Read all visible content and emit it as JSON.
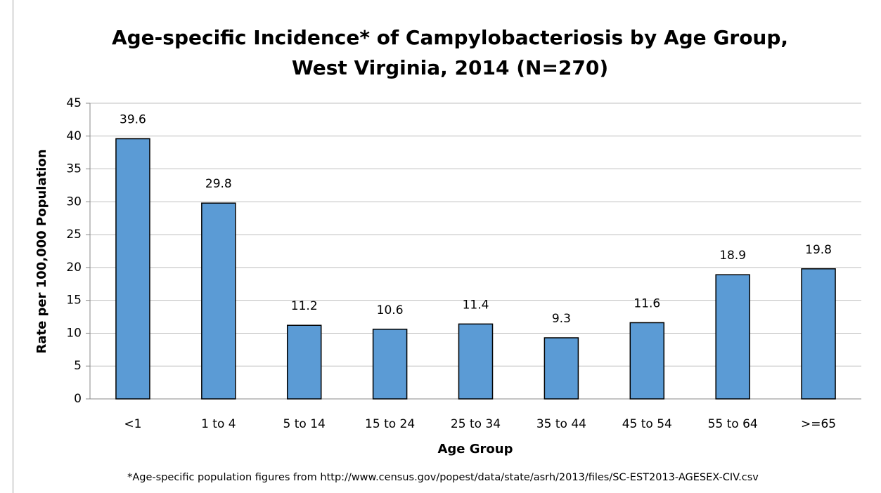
{
  "chart_data": {
    "type": "bar",
    "title": [
      "Age-specific Incidence* of Campylobacteriosis by Age Group,",
      "West Virginia, 2014 (N=270)"
    ],
    "x_label": "Age Group",
    "y_label": "Rate per 100,000 Population",
    "note": "*Age-specific population figures from http://www.census.gov/popest/data/state/asrh/2013/files/SC-EST2013-AGESEX-CIV.csv",
    "categories": [
      "<1",
      "1 to 4",
      "5 to 14",
      "15 to 24",
      "25 to 34",
      "35 to 44",
      "45 to 54",
      "55 to 64",
      ">=65"
    ],
    "values": [
      39.6,
      29.8,
      11.2,
      10.6,
      11.4,
      9.3,
      11.6,
      18.9,
      19.8
    ],
    "color": "#5b9bd5",
    "ylim": [
      0,
      45
    ],
    "yticks": [
      0,
      5,
      10,
      15,
      20,
      25,
      30,
      35,
      40,
      45
    ],
    "grid": true
  }
}
